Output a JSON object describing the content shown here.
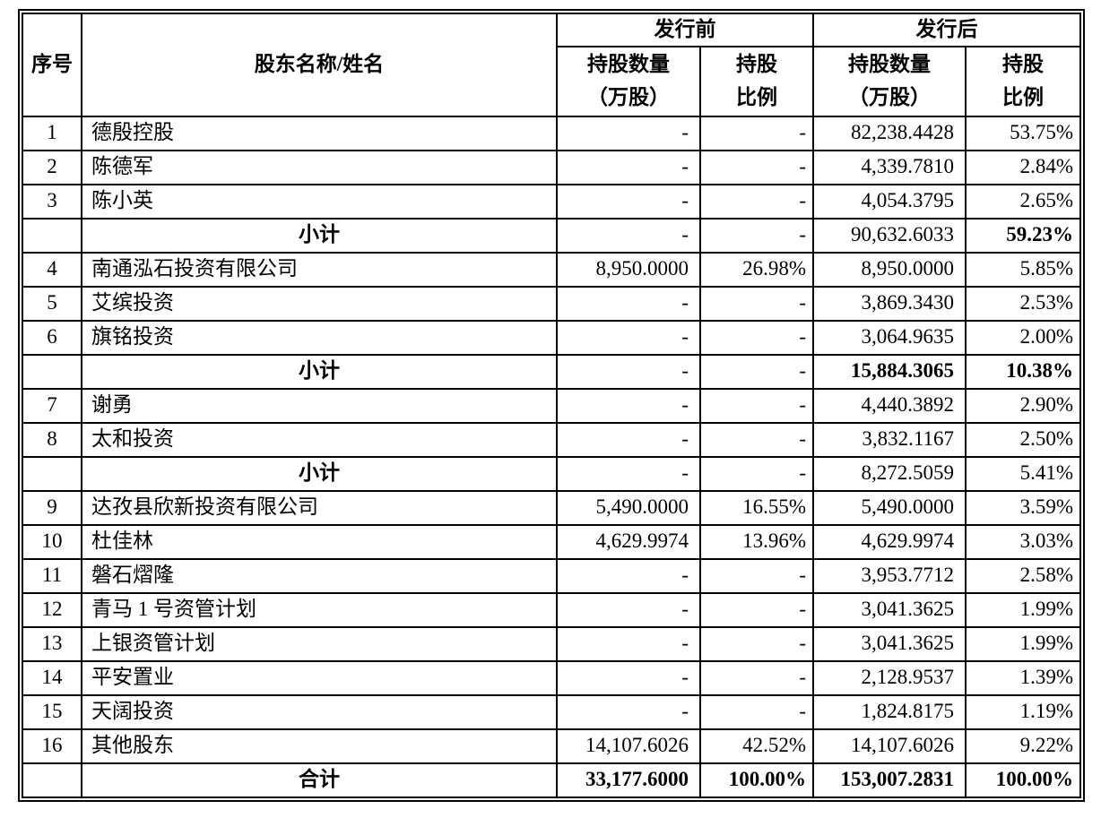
{
  "document": {
    "background_color": "#ffffff",
    "text_color": "#000000",
    "border_color": "#000000"
  },
  "table": {
    "headers": {
      "no": "序号",
      "name": "股东名称/姓名",
      "pre_group": "发行前",
      "post_group": "发行后",
      "pre_qty": "持股数量\n（万股）",
      "pre_pct": "持股\n比例",
      "post_qty": "持股数量\n（万股）",
      "post_pct": "持股\n比例"
    },
    "rows": [
      {
        "type": "data",
        "no": "1",
        "name": "德殷控股",
        "pre_qty": "-",
        "pre_pct": "-",
        "post_qty": "82,238.4428",
        "post_pct": "53.75%",
        "bold": []
      },
      {
        "type": "data",
        "no": "2",
        "name": "陈德军",
        "pre_qty": "-",
        "pre_pct": "-",
        "post_qty": "4,339.7810",
        "post_pct": "2.84%",
        "bold": []
      },
      {
        "type": "data",
        "no": "3",
        "name": "陈小英",
        "pre_qty": "-",
        "pre_pct": "-",
        "post_qty": "4,054.3795",
        "post_pct": "2.65%",
        "bold": []
      },
      {
        "type": "subtotal",
        "no": "",
        "name": "小计",
        "pre_qty": "-",
        "pre_pct": "-",
        "post_qty": "90,632.6033",
        "post_pct": "59.23%",
        "bold": [
          "post_pct"
        ]
      },
      {
        "type": "data",
        "no": "4",
        "name": "南通泓石投资有限公司",
        "pre_qty": "8,950.0000",
        "pre_pct": "26.98%",
        "post_qty": "8,950.0000",
        "post_pct": "5.85%",
        "bold": []
      },
      {
        "type": "data",
        "no": "5",
        "name": "艾缤投资",
        "pre_qty": "-",
        "pre_pct": "-",
        "post_qty": "3,869.3430",
        "post_pct": "2.53%",
        "bold": []
      },
      {
        "type": "data",
        "no": "6",
        "name": "旗铭投资",
        "pre_qty": "-",
        "pre_pct": "-",
        "post_qty": "3,064.9635",
        "post_pct": "2.00%",
        "bold": []
      },
      {
        "type": "subtotal",
        "no": "",
        "name": "小计",
        "pre_qty": "-",
        "pre_pct": "-",
        "post_qty": "15,884.3065",
        "post_pct": "10.38%",
        "bold": [
          "post_qty",
          "post_pct"
        ]
      },
      {
        "type": "data",
        "no": "7",
        "name": "谢勇",
        "pre_qty": "-",
        "pre_pct": "-",
        "post_qty": "4,440.3892",
        "post_pct": "2.90%",
        "bold": []
      },
      {
        "type": "data",
        "no": "8",
        "name": "太和投资",
        "pre_qty": "-",
        "pre_pct": "-",
        "post_qty": "3,832.1167",
        "post_pct": "2.50%",
        "bold": []
      },
      {
        "type": "subtotal",
        "no": "",
        "name": "小计",
        "pre_qty": "-",
        "pre_pct": "-",
        "post_qty": "8,272.5059",
        "post_pct": "5.41%",
        "bold": []
      },
      {
        "type": "data",
        "no": "9",
        "name": "达孜县欣新投资有限公司",
        "pre_qty": "5,490.0000",
        "pre_pct": "16.55%",
        "post_qty": "5,490.0000",
        "post_pct": "3.59%",
        "bold": []
      },
      {
        "type": "data",
        "no": "10",
        "name": "杜佳林",
        "pre_qty": "4,629.9974",
        "pre_pct": "13.96%",
        "post_qty": "4,629.9974",
        "post_pct": "3.03%",
        "bold": []
      },
      {
        "type": "data",
        "no": "11",
        "name": "磐石熠隆",
        "pre_qty": "-",
        "pre_pct": "-",
        "post_qty": "3,953.7712",
        "post_pct": "2.58%",
        "bold": []
      },
      {
        "type": "data",
        "no": "12",
        "name": "青马 1 号资管计划",
        "pre_qty": "-",
        "pre_pct": "-",
        "post_qty": "3,041.3625",
        "post_pct": "1.99%",
        "bold": []
      },
      {
        "type": "data",
        "no": "13",
        "name": "上银资管计划",
        "pre_qty": "-",
        "pre_pct": "-",
        "post_qty": "3,041.3625",
        "post_pct": "1.99%",
        "bold": []
      },
      {
        "type": "data",
        "no": "14",
        "name": "平安置业",
        "pre_qty": "-",
        "pre_pct": "-",
        "post_qty": "2,128.9537",
        "post_pct": "1.39%",
        "bold": []
      },
      {
        "type": "data",
        "no": "15",
        "name": "天阔投资",
        "pre_qty": "-",
        "pre_pct": "-",
        "post_qty": "1,824.8175",
        "post_pct": "1.19%",
        "bold": []
      },
      {
        "type": "data",
        "no": "16",
        "name": "其他股东",
        "pre_qty": "14,107.6026",
        "pre_pct": "42.52%",
        "post_qty": "14,107.6026",
        "post_pct": "9.22%",
        "bold": []
      },
      {
        "type": "total",
        "no": "",
        "name": "合计",
        "pre_qty": "33,177.6000",
        "pre_pct": "100.00%",
        "post_qty": "153,007.2831",
        "post_pct": "100.00%",
        "bold": [
          "pre_qty",
          "pre_pct",
          "post_qty",
          "post_pct"
        ]
      }
    ]
  }
}
